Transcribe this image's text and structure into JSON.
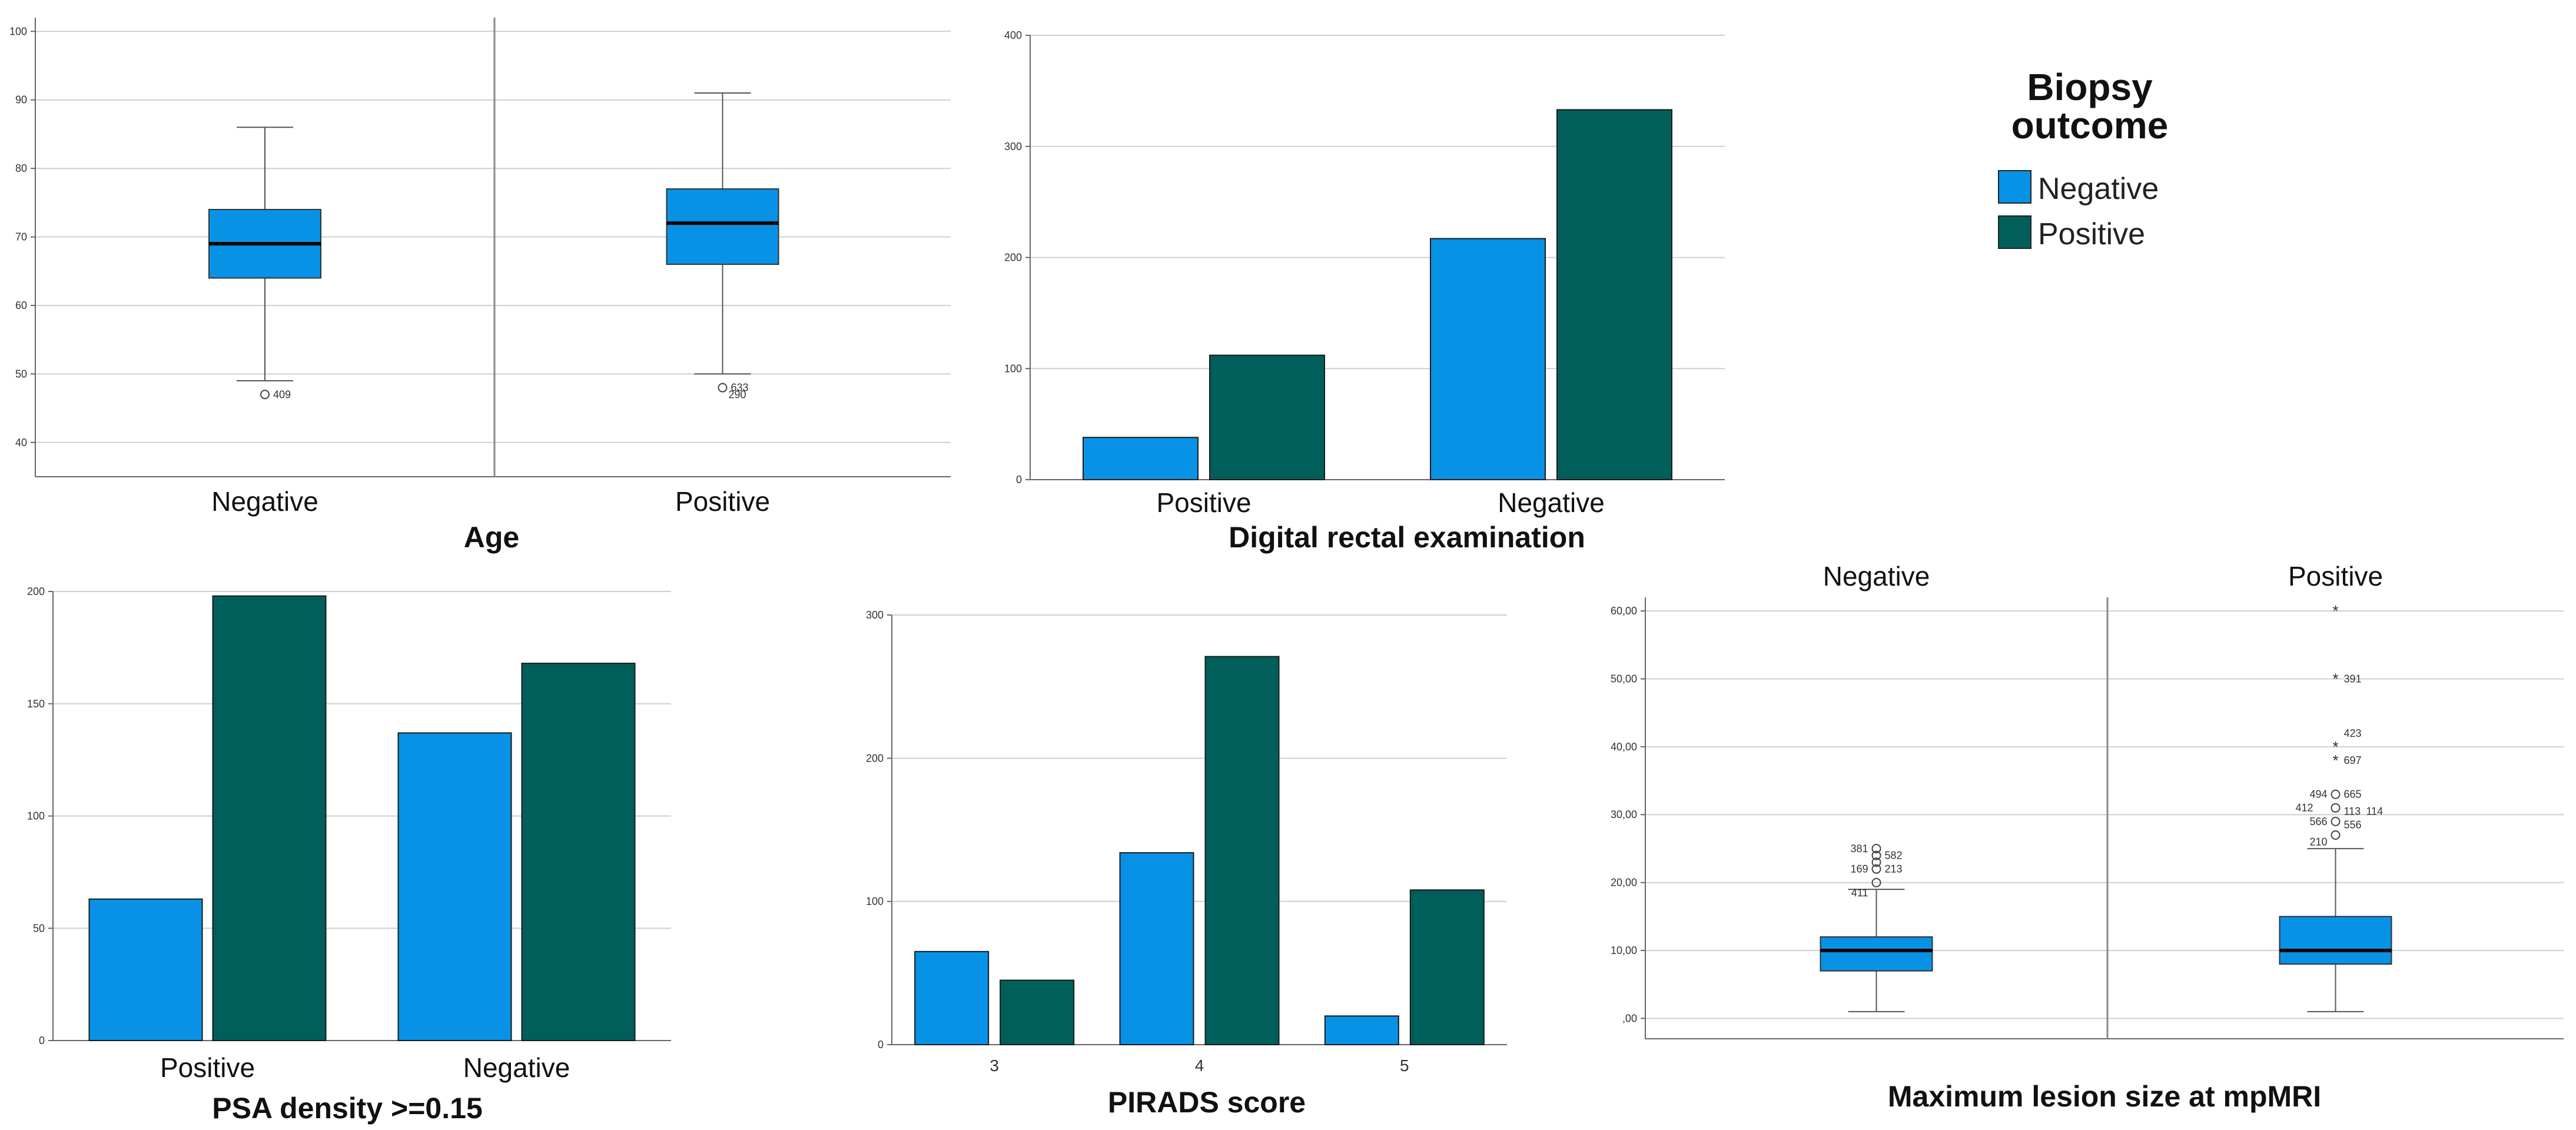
{
  "colors": {
    "negative": "#0892E6",
    "positive": "#005F5A",
    "grid": "#cfcfcf",
    "axis": "#666666"
  },
  "legend": {
    "title_line1": "Biopsy",
    "title_line2": "outcome",
    "items": [
      "Negative",
      "Positive"
    ]
  },
  "chart_data": [
    {
      "id": "age",
      "type": "box",
      "title": "Age",
      "panels": [
        "Negative",
        "Positive"
      ],
      "ylim": [
        35,
        102
      ],
      "yticks": [
        "40",
        "50",
        "60",
        "70",
        "80",
        "90",
        "100"
      ],
      "boxes": [
        {
          "min": 49,
          "q1": 64,
          "median": 69,
          "q3": 74,
          "max": 86,
          "outliers": [
            {
              "v": 47,
              "sym": "o",
              "label": "409"
            }
          ]
        },
        {
          "min": 50,
          "q1": 66,
          "median": 72,
          "q3": 77,
          "max": 91,
          "outliers": [
            {
              "v": 48,
              "sym": "o",
              "label": "633"
            },
            {
              "v": 48,
              "sym": "",
              "label": "290"
            }
          ]
        }
      ]
    },
    {
      "id": "dre",
      "type": "bar",
      "title": "Digital rectal examination",
      "categories": [
        "Positive",
        "Negative"
      ],
      "series": [
        {
          "name": "Negative",
          "values": [
            38,
            217
          ]
        },
        {
          "name": "Positive",
          "values": [
            112,
            333
          ]
        }
      ],
      "ylim": [
        0,
        400
      ],
      "yticks": [
        "0",
        "100",
        "200",
        "300",
        "400"
      ]
    },
    {
      "id": "psad",
      "type": "bar",
      "title": "PSA density >=0.15",
      "categories": [
        "Positive",
        "Negative"
      ],
      "series": [
        {
          "name": "Negative",
          "values": [
            63,
            137
          ]
        },
        {
          "name": "Positive",
          "values": [
            198,
            168
          ]
        }
      ],
      "ylim": [
        0,
        200
      ],
      "yticks": [
        "0",
        "50",
        "100",
        "150",
        "200"
      ]
    },
    {
      "id": "pirads",
      "type": "bar",
      "title": "PIRADS score",
      "categories": [
        "3",
        "4",
        "5"
      ],
      "series": [
        {
          "name": "Negative",
          "values": [
            65,
            134,
            20
          ]
        },
        {
          "name": "Positive",
          "values": [
            45,
            271,
            108
          ]
        }
      ],
      "ylim": [
        0,
        300
      ],
      "yticks": [
        "0",
        "100",
        "200",
        "300"
      ]
    },
    {
      "id": "lesion",
      "type": "box",
      "title": "Maximum lesion size at mpMRI",
      "panels": [
        "Negative",
        "Positive"
      ],
      "ylim": [
        -3,
        62
      ],
      "yticks": [
        ",00",
        "10,00",
        "20,00",
        "30,00",
        "40,00",
        "50,00",
        "60,00"
      ],
      "boxes": [
        {
          "min": 1,
          "q1": 7,
          "median": 10,
          "q3": 12,
          "max": 19,
          "outliers": [
            {
              "v": 25,
              "sym": "o",
              "label": "381",
              "lpos": "l"
            },
            {
              "v": 24,
              "sym": "o",
              "label": "582",
              "lpos": "r"
            },
            {
              "v": 23,
              "sym": "o",
              "label": ""
            },
            {
              "v": 22,
              "sym": "o",
              "label": "169",
              "lpos": "l"
            },
            {
              "v": 22,
              "sym": "",
              "label": "213",
              "lpos": "r"
            },
            {
              "v": 20,
              "sym": "o",
              "label": ""
            },
            {
              "v": 18.5,
              "sym": "",
              "label": "411",
              "lpos": "l"
            }
          ]
        },
        {
          "min": 1,
          "q1": 8,
          "median": 10,
          "q3": 15,
          "max": 25,
          "outliers": [
            {
              "v": 60,
              "sym": "*",
              "label": ""
            },
            {
              "v": 50,
              "sym": "*",
              "label": "391",
              "lpos": "r"
            },
            {
              "v": 42,
              "sym": "",
              "label": "423",
              "lpos": "r"
            },
            {
              "v": 40,
              "sym": "*",
              "label": ""
            },
            {
              "v": 38,
              "sym": "*",
              "label": "697",
              "lpos": "r"
            },
            {
              "v": 33,
              "sym": "o",
              "label": "494",
              "lpos": "l"
            },
            {
              "v": 33,
              "sym": "",
              "label": "665",
              "lpos": "r"
            },
            {
              "v": 31,
              "sym": "o",
              "label": "412",
              "lpos": "ll"
            },
            {
              "v": 30.5,
              "sym": "",
              "label": "113",
              "lpos": "r"
            },
            {
              "v": 30.5,
              "sym": "",
              "label": "114",
              "lpos": "rr"
            },
            {
              "v": 29,
              "sym": "o",
              "label": "566",
              "lpos": "l"
            },
            {
              "v": 28.5,
              "sym": "",
              "label": "556",
              "lpos": "r"
            },
            {
              "v": 27,
              "sym": "o",
              "label": ""
            },
            {
              "v": 26,
              "sym": "",
              "label": "210",
              "lpos": "l"
            }
          ]
        }
      ]
    }
  ]
}
